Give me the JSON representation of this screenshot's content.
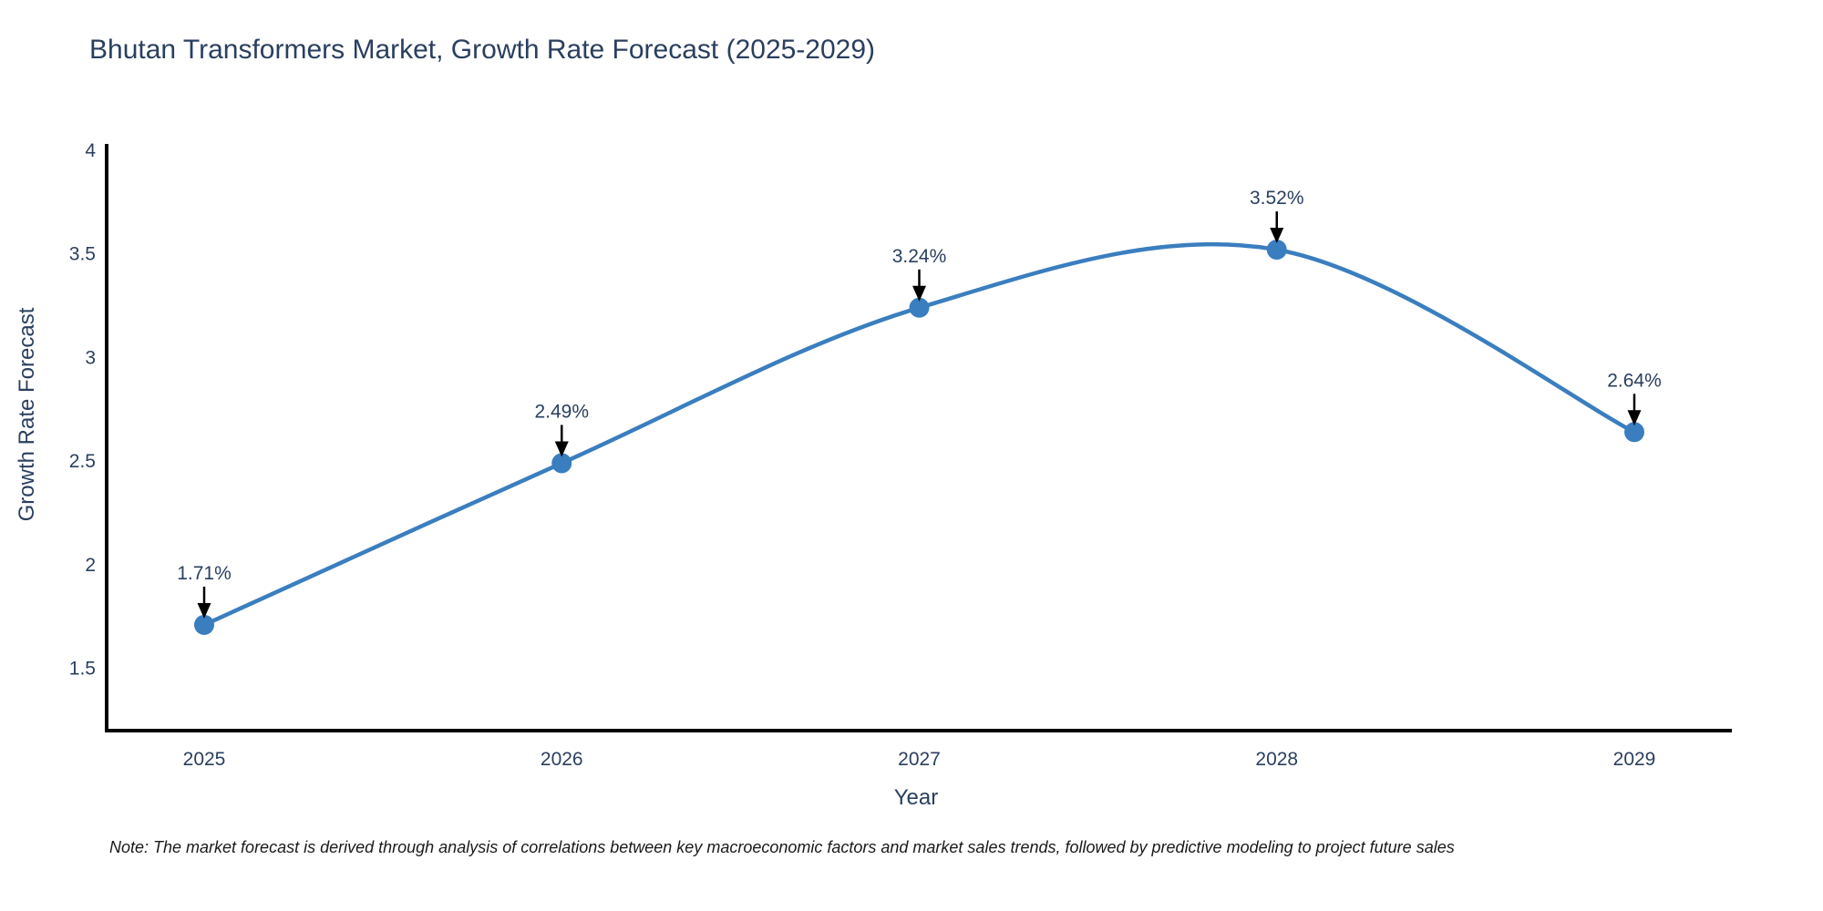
{
  "chart_data": {
    "type": "line",
    "title": "Bhutan Transformers Market, Growth Rate Forecast (2025-2029)",
    "xlabel": "Year",
    "ylabel": "Growth Rate Forecast",
    "categories": [
      "2025",
      "2026",
      "2027",
      "2028",
      "2029"
    ],
    "series": [
      {
        "name": "Growth Rate Forecast",
        "values": [
          1.71,
          2.49,
          3.24,
          3.52,
          2.64
        ],
        "point_labels": [
          "1.71%",
          "2.49%",
          "3.24%",
          "3.52%",
          "2.64%"
        ]
      }
    ],
    "line_shape": "spline",
    "markers": true,
    "grid": false,
    "legend": false,
    "ytick_values": [
      1.5,
      2,
      2.5,
      3,
      3.5,
      4
    ],
    "ylim": [
      1.2,
      4.03
    ],
    "colors": {
      "line": "#3a7ebf",
      "marker": "#3a7ebf",
      "axis_line": "#000000",
      "text": "#2a3f5f",
      "annotation_text": "#2a3f5f",
      "arrow": "#000000",
      "background": "#ffffff"
    },
    "note": "Note: The market forecast is derived through analysis of correlations between key macroeconomic factors and market sales trends, followed by predictive modeling to project future sales"
  }
}
